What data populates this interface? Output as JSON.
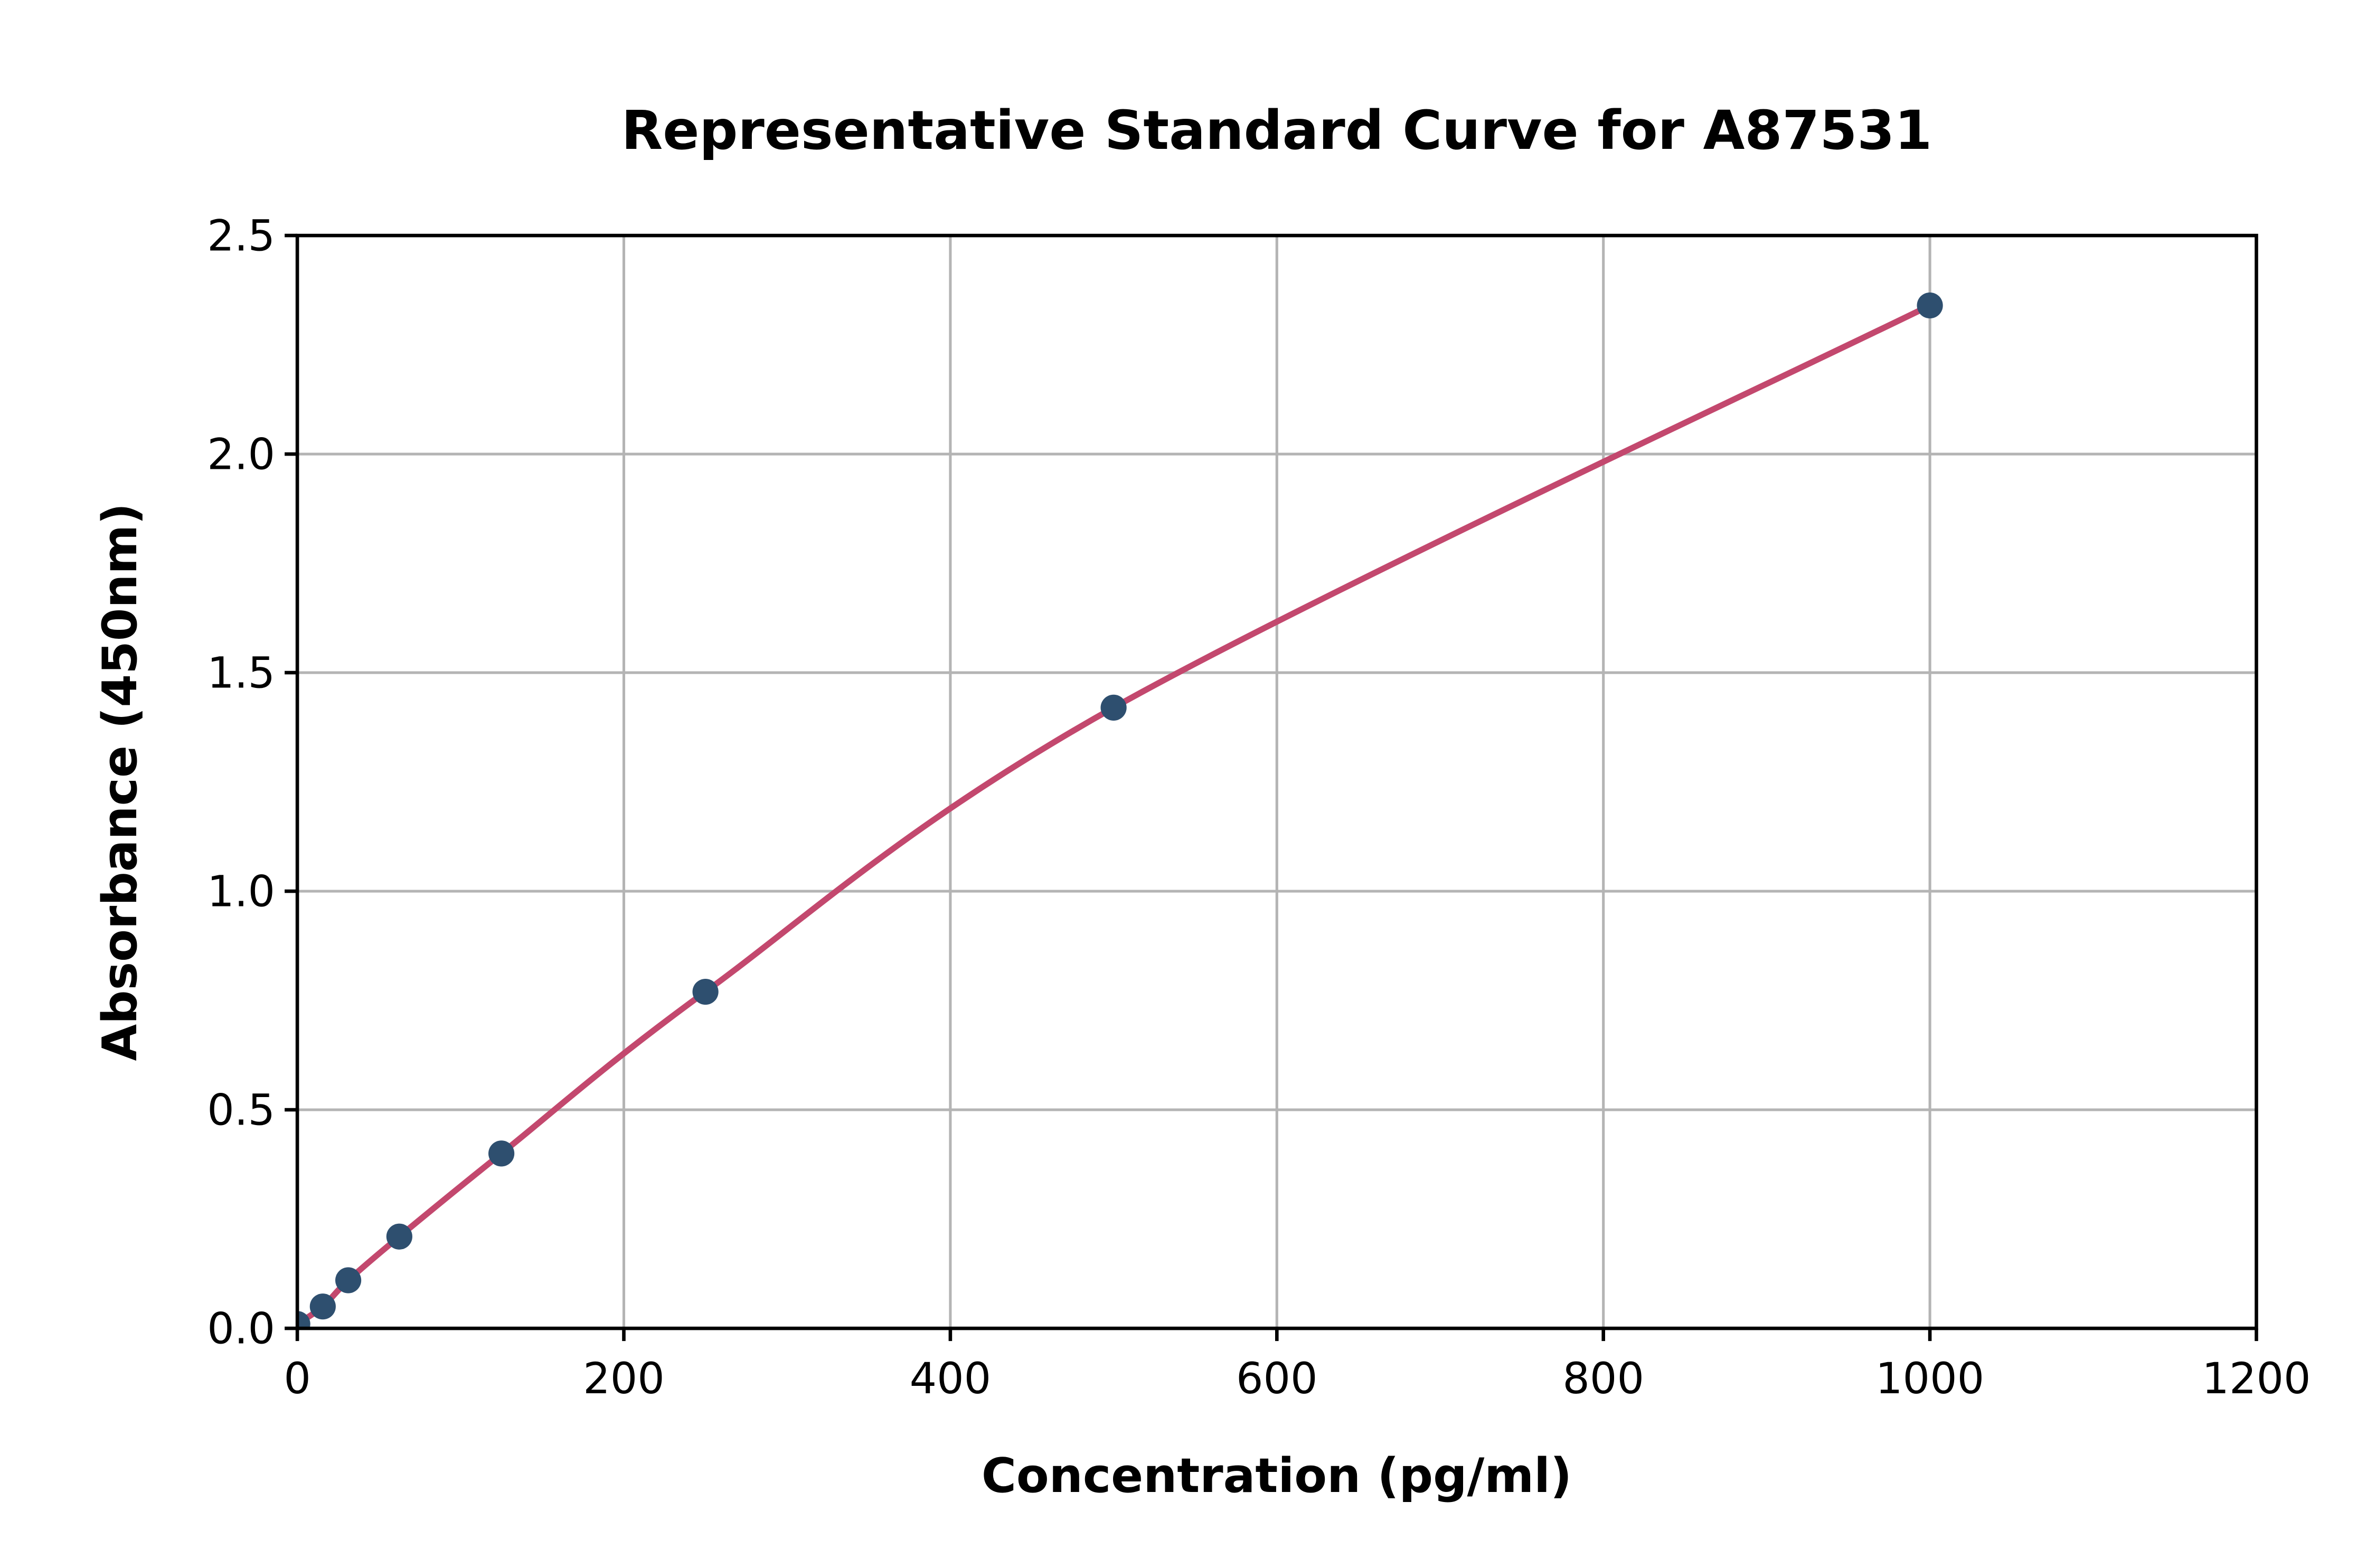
{
  "chart_data": {
    "type": "scatter",
    "title": "Representative Standard Curve for A87531",
    "xlabel": "Concentration (pg/ml)",
    "ylabel": "Absorbance (450nm)",
    "xlim": [
      0,
      1200
    ],
    "ylim": [
      0,
      2.5
    ],
    "x_ticks": [
      0,
      200,
      400,
      600,
      800,
      1000,
      1200
    ],
    "x_tick_labels": [
      "0",
      "200",
      "400",
      "600",
      "800",
      "1000",
      "1200"
    ],
    "y_ticks": [
      0,
      0.5,
      1.0,
      1.5,
      2.0,
      2.5
    ],
    "y_tick_labels": [
      "0.0",
      "0.5",
      "1.0",
      "1.5",
      "2.0",
      "2.5"
    ],
    "grid": true,
    "legend_position": "none",
    "series": [
      {
        "name": "standard-points",
        "x": [
          0,
          15.6,
          31.2,
          62.5,
          125,
          250,
          500,
          1000
        ],
        "y": [
          0.01,
          0.05,
          0.11,
          0.21,
          0.4,
          0.77,
          1.42,
          2.34
        ],
        "marker": "circle",
        "marker_color": "#2e4f6f",
        "fit_curve": true,
        "fit_curve_color": "#c3486e"
      }
    ],
    "colors": {
      "background": "#ffffff",
      "grid": "#b4b4b4",
      "axis": "#000000",
      "text": "#000000",
      "marker": "#2e4f6f",
      "curve": "#c3486e"
    }
  }
}
